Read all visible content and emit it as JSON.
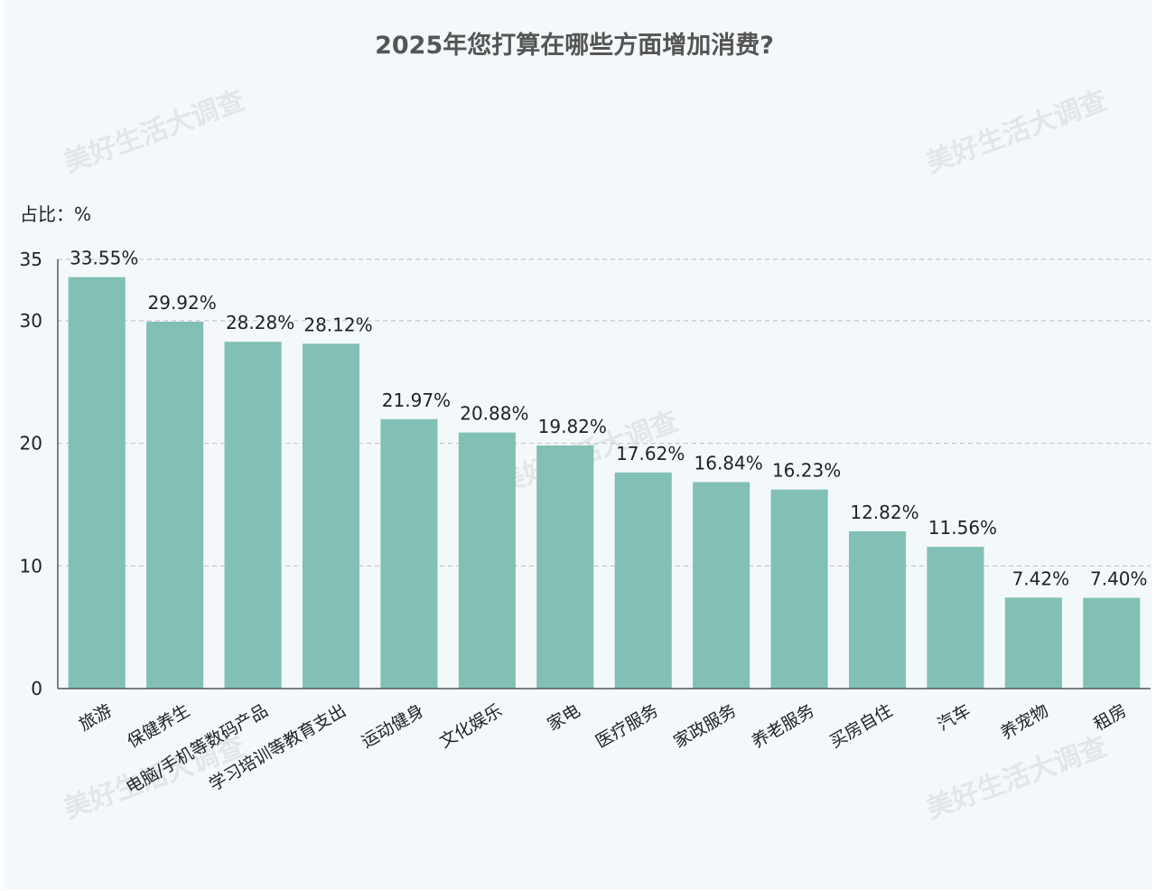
{
  "watermark": "美好生活大调查",
  "colors": {
    "bar": "#82c0b5",
    "background": "#f3f8fb"
  },
  "chart_data": {
    "type": "bar",
    "title": "2025年您打算在哪些方面增加消费?",
    "ylabel": "占比：%",
    "xlabel": "",
    "ylim": [
      0,
      35
    ],
    "yticks": [
      0,
      10,
      20,
      30,
      35
    ],
    "grid": true,
    "categories": [
      "旅游",
      "保健养生",
      "电脑/手机等数码产品",
      "学习培训等教育支出",
      "运动健身",
      "文化娱乐",
      "家电",
      "医疗服务",
      "家政服务",
      "养老服务",
      "买房自住",
      "汽车",
      "养宠物",
      "租房"
    ],
    "values": [
      33.55,
      29.92,
      28.28,
      28.12,
      21.97,
      20.88,
      19.82,
      17.62,
      16.84,
      16.23,
      12.82,
      11.56,
      7.42,
      7.4
    ],
    "data_labels": [
      "33.55%",
      "29.92%",
      "28.28%",
      "28.12%",
      "21.97%",
      "20.88%",
      "19.82%",
      "17.62%",
      "16.84%",
      "16.23%",
      "12.82%",
      "11.56%",
      "7.42%",
      "7.40%"
    ]
  }
}
